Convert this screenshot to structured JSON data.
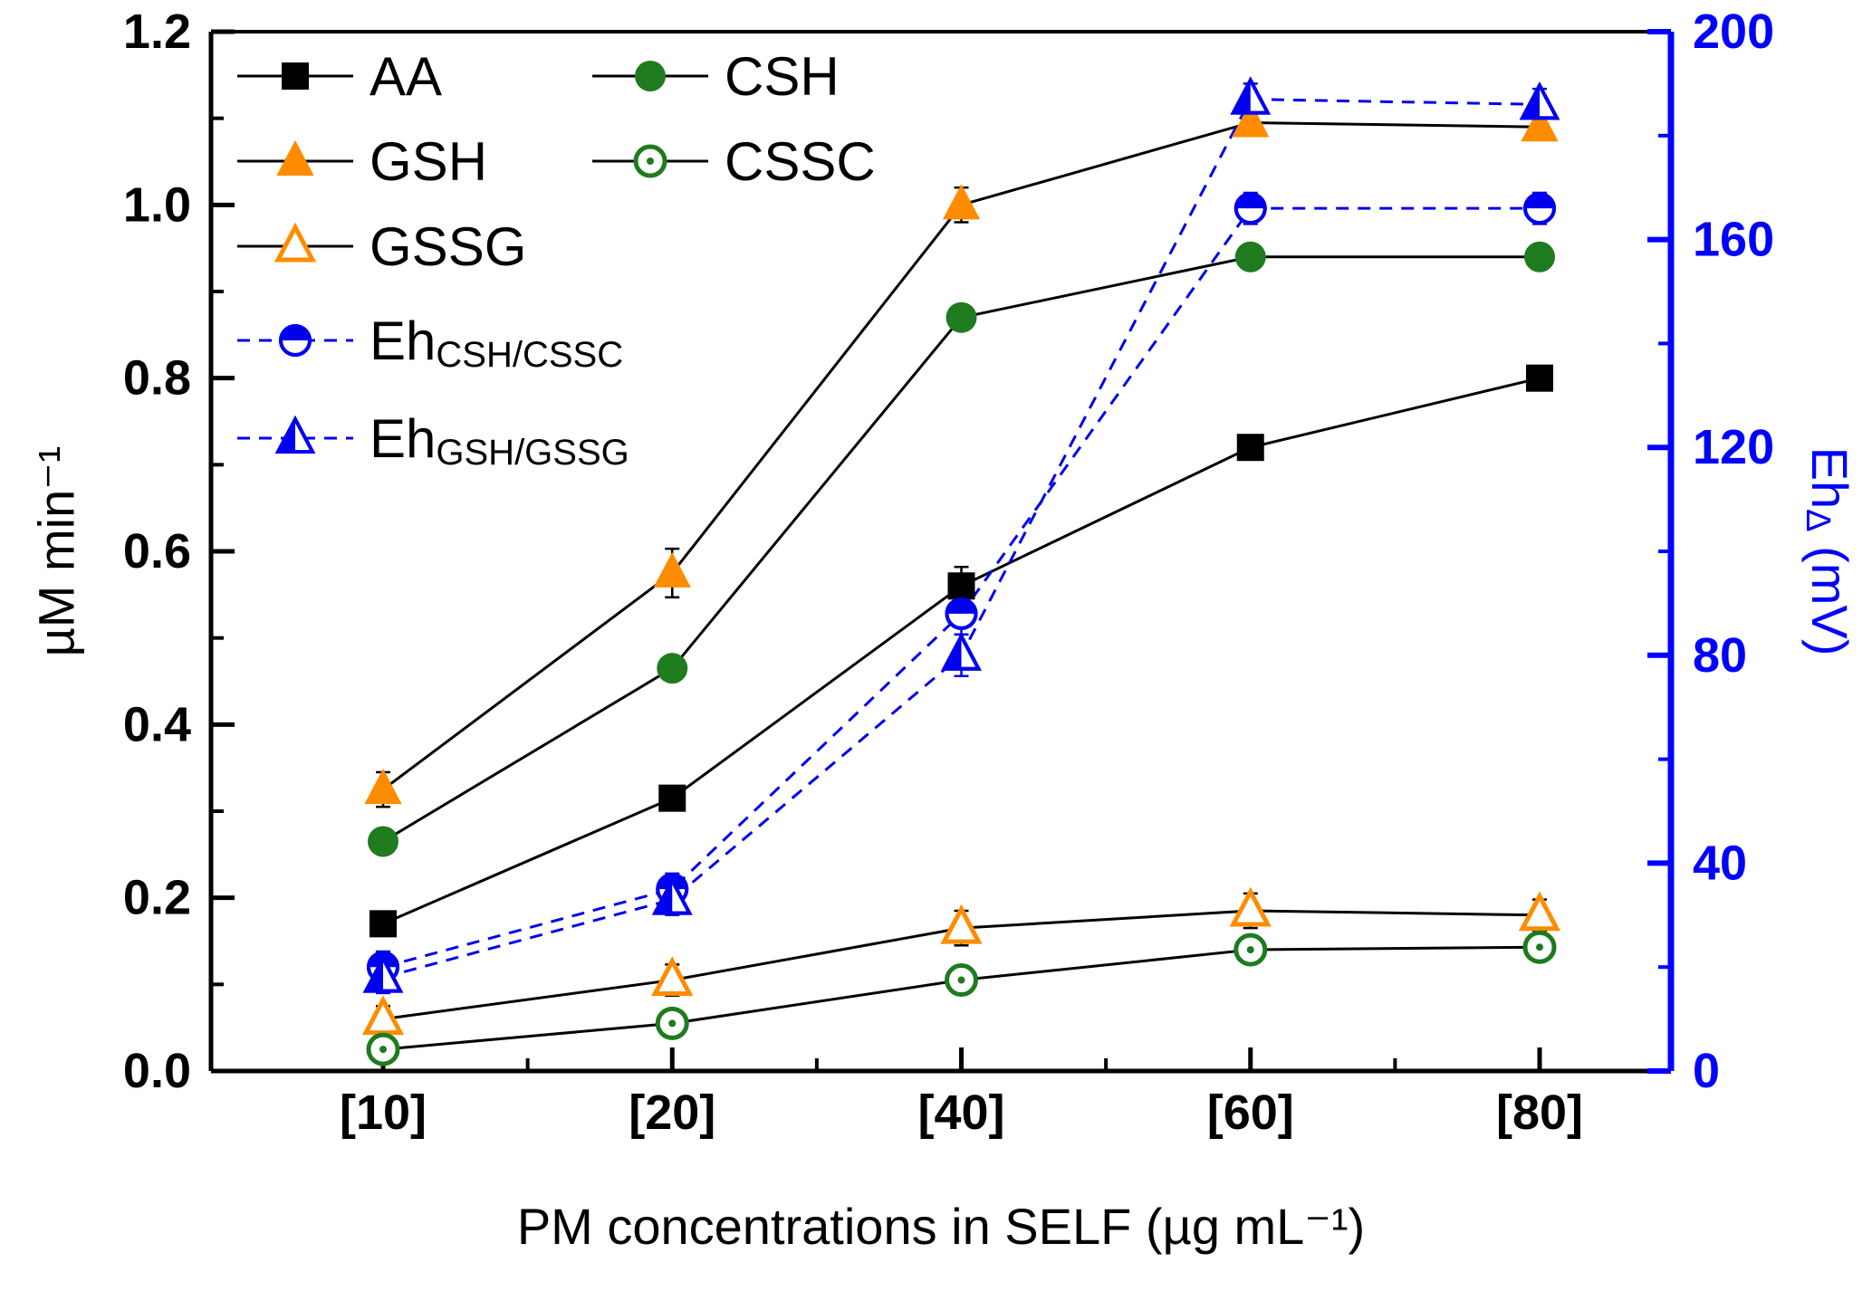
{
  "chart_data": {
    "type": "line",
    "title": "",
    "grid": false,
    "legend_position": "top-left",
    "categories": [
      "[10]",
      "[20]",
      "[40]",
      "[60]",
      "[80]"
    ],
    "x_axis": {
      "label": "PM concentrations in SELF (µg mL⁻¹)",
      "tick_labels": [
        "[10]",
        "[20]",
        "[40]",
        "[60]",
        "[80]"
      ]
    },
    "left_axis": {
      "label": "µM min⁻¹",
      "min": 0.0,
      "max": 1.2,
      "major_ticks": [
        0.0,
        0.2,
        0.4,
        0.6,
        0.8,
        1.0,
        1.2
      ],
      "tick_labels": [
        "0.0",
        "0.2",
        "0.4",
        "0.6",
        "0.8",
        "1.0",
        "1.2"
      ],
      "minor_step": 0.1,
      "color": "#000000"
    },
    "right_axis": {
      "label_main": "Eh",
      "label_sub": "Δ",
      "label_rest": " (mV)",
      "min": 0,
      "max": 200,
      "major_ticks": [
        0,
        40,
        80,
        120,
        160,
        200
      ],
      "tick_labels": [
        "0",
        "40",
        "80",
        "120",
        "160",
        "200"
      ],
      "minor_step": 20,
      "color": "#0000FF"
    },
    "series": [
      {
        "label": "AA",
        "axis": "left",
        "marker": "square-filled",
        "marker_color": "#000000",
        "line_color": "#000000",
        "line_style": "solid",
        "values": [
          0.17,
          0.315,
          0.56,
          0.72,
          0.8
        ],
        "errors": [
          0.008,
          0.01,
          0.022,
          0.012,
          0.012
        ]
      },
      {
        "label": "GSH",
        "axis": "left",
        "marker": "triangle-filled",
        "marker_color": "#FF8C00",
        "line_color": "#000000",
        "line_style": "solid",
        "values": [
          0.325,
          0.575,
          1.0,
          1.095,
          1.09
        ],
        "errors": [
          0.02,
          0.028,
          0.02,
          0.012,
          0.012
        ]
      },
      {
        "label": "GSSG",
        "axis": "left",
        "marker": "triangle-open",
        "marker_color": "#FF8C00",
        "line_color": "#000000",
        "line_style": "solid",
        "values": [
          0.06,
          0.105,
          0.165,
          0.185,
          0.18
        ],
        "errors": [
          0.015,
          0.018,
          0.02,
          0.02,
          0.018
        ]
      },
      {
        "label": "CSH",
        "axis": "left",
        "marker": "circle-filled",
        "marker_color": "#1E7B1E",
        "line_color": "#000000",
        "line_style": "solid",
        "values": [
          0.265,
          0.465,
          0.87,
          0.94,
          0.94
        ],
        "errors": [
          0.01,
          0.01,
          0.012,
          0.01,
          0.01
        ]
      },
      {
        "label": "CSSC",
        "axis": "left",
        "marker": "circle-open-dot",
        "marker_color": "#1E7B1E",
        "line_color": "#000000",
        "line_style": "solid",
        "values": [
          0.025,
          0.055,
          0.105,
          0.14,
          0.143
        ],
        "errors": [
          0.008,
          0.012,
          0.012,
          0.012,
          0.012
        ]
      },
      {
        "label": "Eh",
        "label_sub": "CSH/CSSC",
        "axis": "right",
        "marker": "circle-half",
        "marker_color": "#0000EE",
        "line_color": "#0000EE",
        "line_style": "dashed",
        "values": [
          20,
          35,
          88,
          166,
          166
        ],
        "errors": [
          3,
          3,
          4,
          3,
          3
        ]
      },
      {
        "label": "Eh",
        "label_sub": "GSH/GSSG",
        "axis": "right",
        "marker": "triangle-half",
        "marker_color": "#0000EE",
        "line_color": "#0000EE",
        "line_style": "dashed",
        "values": [
          18,
          33,
          80,
          187,
          186
        ],
        "errors": [
          3,
          3,
          4,
          3,
          3
        ]
      }
    ],
    "legend": {
      "items": [
        {
          "series": 0,
          "row": 0,
          "col": 0
        },
        {
          "series": 3,
          "row": 0,
          "col": 1
        },
        {
          "series": 1,
          "row": 1,
          "col": 0
        },
        {
          "series": 4,
          "row": 1,
          "col": 1
        },
        {
          "series": 2,
          "row": 2,
          "col": 0
        },
        {
          "series": 5,
          "row": 3,
          "col": 0
        },
        {
          "series": 6,
          "row": 4,
          "col": 0
        }
      ]
    }
  }
}
